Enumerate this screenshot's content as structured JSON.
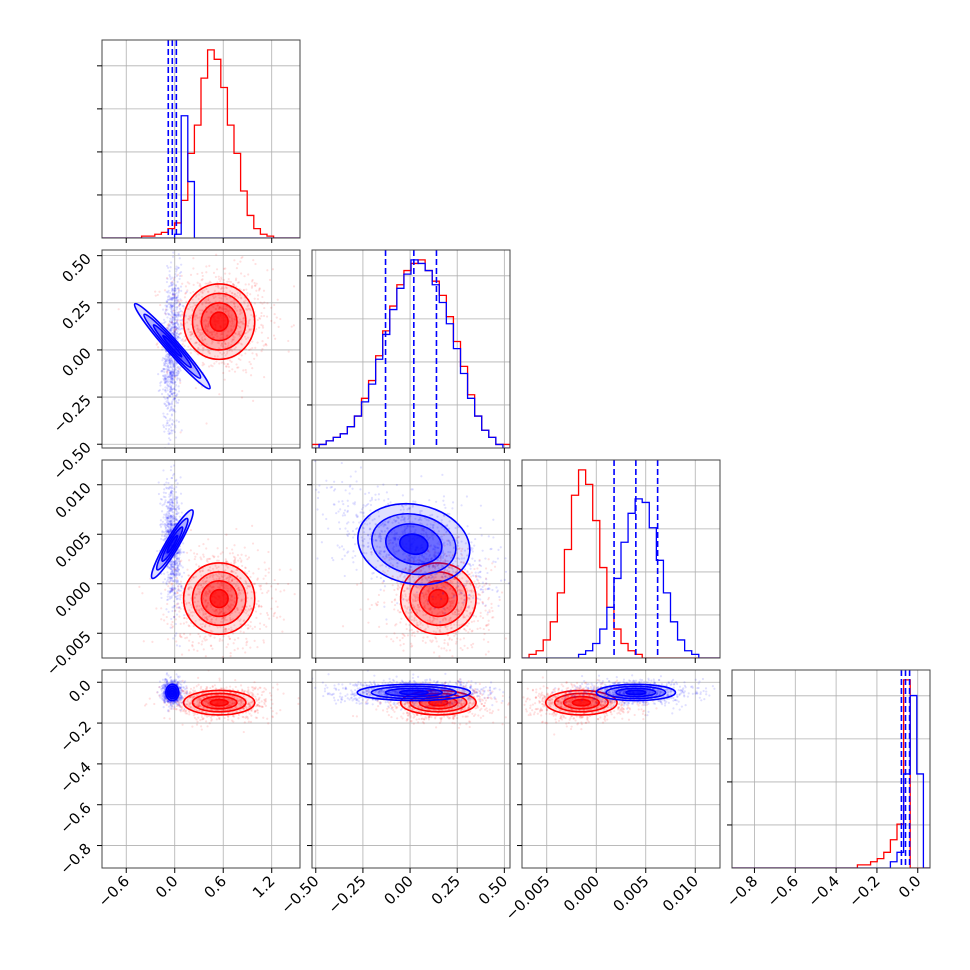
{
  "figure": {
    "type": "corner-plot"
  },
  "colors": {
    "red": "#ff0000",
    "blue": "#0000ff",
    "grid": "#b0b0b0",
    "frame": "#444444"
  },
  "chart_data": {
    "type": "corner",
    "grid": true,
    "parameters": [
      {
        "range": [
          -0.9,
          1.55
        ],
        "ticks": [
          -0.6,
          0.0,
          0.6,
          1.2
        ],
        "tick_labels": [
          "−0.6",
          "0.0",
          "0.6",
          "1.2"
        ]
      },
      {
        "range": [
          -0.52,
          0.53
        ],
        "ticks": [
          -0.5,
          -0.25,
          0.0,
          0.25,
          0.5
        ],
        "tick_labels": [
          "−0.50",
          "−0.25",
          "0.00",
          "0.25",
          "0.50"
        ]
      },
      {
        "range": [
          -0.0075,
          0.0125
        ],
        "ticks": [
          -0.005,
          0.0,
          0.005,
          0.01
        ],
        "tick_labels": [
          "−0.005",
          "0.000",
          "0.005",
          "0.010"
        ]
      },
      {
        "range": [
          -0.91,
          0.06
        ],
        "ticks": [
          -0.8,
          -0.6,
          -0.4,
          -0.2,
          0.0
        ],
        "tick_labels": [
          "−0.8",
          "−0.6",
          "−0.4",
          "−0.2",
          "0.0"
        ]
      }
    ],
    "series": [
      {
        "color": "red",
        "mean": [
          0.55,
          0.15,
          -0.0015,
          -0.1
        ],
        "sd": [
          0.22,
          0.1,
          0.0018,
          0.03
        ],
        "corr": [
          [
            1,
            0,
            0,
            0
          ],
          [
            0,
            1,
            -0.1,
            0
          ],
          [
            0,
            -0.1,
            1,
            0
          ],
          [
            0,
            0,
            0,
            1
          ]
        ],
        "hist_bins": {
          "x0": {
            "edges": [
              -0.9,
              1.55
            ],
            "counts": [
              0,
              0,
              0,
              0,
              0,
              0,
              1,
              1,
              2,
              3,
              5,
              8,
              20,
              45,
              60,
              85,
              100,
              95,
              80,
              60,
              45,
              25,
              12,
              5,
              2,
              1,
              0,
              0,
              0,
              0
            ]
          },
          "x1": {
            "edges": [
              -0.52,
              0.53
            ],
            "counts": [
              1,
              1,
              2,
              3,
              4,
              6,
              9,
              14,
              19,
              26,
              33,
              40,
              46,
              50,
              52,
              53,
              50,
              47,
              43,
              37,
              30,
              23,
              15,
              9,
              5,
              3,
              1,
              1
            ]
          },
          "x2": {
            "edges": [
              -0.0075,
              0.0125
            ],
            "counts": [
              0,
              1,
              2,
              5,
              10,
              18,
              30,
              45,
              52,
              48,
              38,
              25,
              14,
              8,
              4,
              2,
              1,
              0,
              0,
              0,
              0,
              0,
              0,
              0,
              0,
              0,
              0,
              0
            ]
          },
          "x3": {
            "edges": [
              -0.91,
              0.06
            ],
            "counts": [
              0,
              0,
              0,
              0,
              0,
              0,
              0,
              0,
              0,
              0,
              0,
              0,
              0,
              0,
              0,
              0,
              0,
              0,
              0,
              1,
              1,
              2,
              3,
              5,
              9,
              14,
              60,
              0,
              0,
              0
            ]
          }
        }
      },
      {
        "color": "blue",
        "mean": [
          -0.03,
          0.02,
          0.004,
          -0.05
        ],
        "sd": [
          0.04,
          0.15,
          0.002,
          0.02
        ],
        "corr": [
          [
            1,
            0.3,
            -0.2,
            0
          ],
          [
            0.3,
            1,
            -0.5,
            0
          ],
          [
            -0.2,
            -0.5,
            1,
            0
          ],
          [
            0,
            0,
            0,
            1
          ]
        ],
        "hist_bins": {
          "x0": {
            "edges": [
              -0.9,
              1.55
            ],
            "counts": [
              0,
              0,
              0,
              0,
              0,
              0,
              0,
              0,
              0,
              0,
              0,
              2,
              65,
              30,
              0,
              0,
              0,
              0,
              0,
              0,
              0,
              0,
              0,
              0,
              0,
              0,
              0,
              0,
              0,
              0
            ]
          },
          "x1": {
            "edges": [
              -0.52,
              0.53
            ],
            "counts": [
              0,
              1,
              2,
              3,
              4,
              6,
              9,
              13,
              18,
              25,
              32,
              39,
              45,
              49,
              53,
              52,
              50,
              46,
              41,
              35,
              28,
              21,
              14,
              9,
              5,
              3,
              1,
              0
            ]
          },
          "x2": {
            "edges": [
              -0.0075,
              0.0125
            ],
            "counts": [
              0,
              0,
              0,
              0,
              0,
              0,
              0,
              0,
              1,
              2,
              4,
              8,
              14,
              22,
              32,
              40,
              44,
              43,
              36,
              27,
              18,
              10,
              5,
              2,
              1,
              0,
              0,
              0
            ]
          },
          "x3": {
            "edges": [
              -0.91,
              0.06
            ],
            "counts": [
              0,
              0,
              0,
              0,
              0,
              0,
              0,
              0,
              0,
              0,
              0,
              0,
              0,
              0,
              0,
              0,
              0,
              0,
              0,
              0,
              0,
              0,
              0,
              0,
              2,
              5,
              30,
              55,
              30,
              0
            ]
          }
        }
      }
    ],
    "quantile_lines": {
      "color": "blue",
      "values": [
        [
          -0.08,
          -0.03,
          0.02
        ],
        [
          -0.13,
          0.02,
          0.14
        ],
        [
          0.0018,
          0.004,
          0.0062
        ],
        [
          -0.08,
          -0.06,
          -0.04
        ]
      ]
    }
  }
}
